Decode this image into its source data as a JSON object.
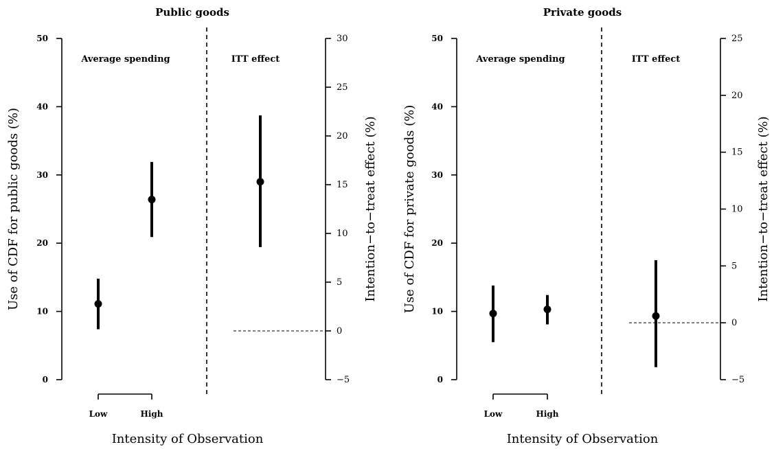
{
  "chart_data": [
    {
      "type": "scatter",
      "title": "Public goods",
      "left_section_label": "Average spending",
      "right_section_label": "ITT effect",
      "ylabel_left": "Use of CDF for public goods (%)",
      "ylabel_right": "Intention−to−treat effect (%)",
      "xlabel": "Intensity of Observation",
      "categories": [
        "Low",
        "High"
      ],
      "ylim_left": [
        0,
        50
      ],
      "yticks_left": [
        0,
        10,
        20,
        30,
        40,
        50
      ],
      "ylim_right": [
        -5,
        30
      ],
      "yticks_right": [
        -5,
        0,
        5,
        10,
        15,
        20,
        25,
        30
      ],
      "series": [
        {
          "points": [
            {
              "category": "Low",
              "estimate": 11.1,
              "lower": 7.4,
              "upper": 14.8
            },
            {
              "category": "High",
              "estimate": 26.4,
              "lower": 20.9,
              "upper": 31.9
            }
          ]
        }
      ],
      "itt": {
        "estimate": 15.3,
        "lower": 8.6,
        "upper": 22.1
      },
      "reference_line": 0
    },
    {
      "type": "scatter",
      "title": "Private goods",
      "left_section_label": "Average spending",
      "right_section_label": "ITT effect",
      "ylabel_left": "Use of CDF for private goods (%)",
      "ylabel_right": "Intention−to−treat effect (%)",
      "xlabel": "Intensity of Observation",
      "categories": [
        "Low",
        "High"
      ],
      "ylim_left": [
        0,
        50
      ],
      "yticks_left": [
        0,
        10,
        20,
        30,
        40,
        50
      ],
      "ylim_right": [
        -5,
        25
      ],
      "yticks_right": [
        -5,
        0,
        5,
        10,
        15,
        20,
        25
      ],
      "series": [
        {
          "points": [
            {
              "category": "Low",
              "estimate": 9.7,
              "lower": 5.5,
              "upper": 13.8
            },
            {
              "category": "High",
              "estimate": 10.3,
              "lower": 8.1,
              "upper": 12.4
            }
          ]
        }
      ],
      "itt": {
        "estimate": 0.6,
        "lower": -3.9,
        "upper": 5.5
      },
      "reference_line": 0
    }
  ]
}
